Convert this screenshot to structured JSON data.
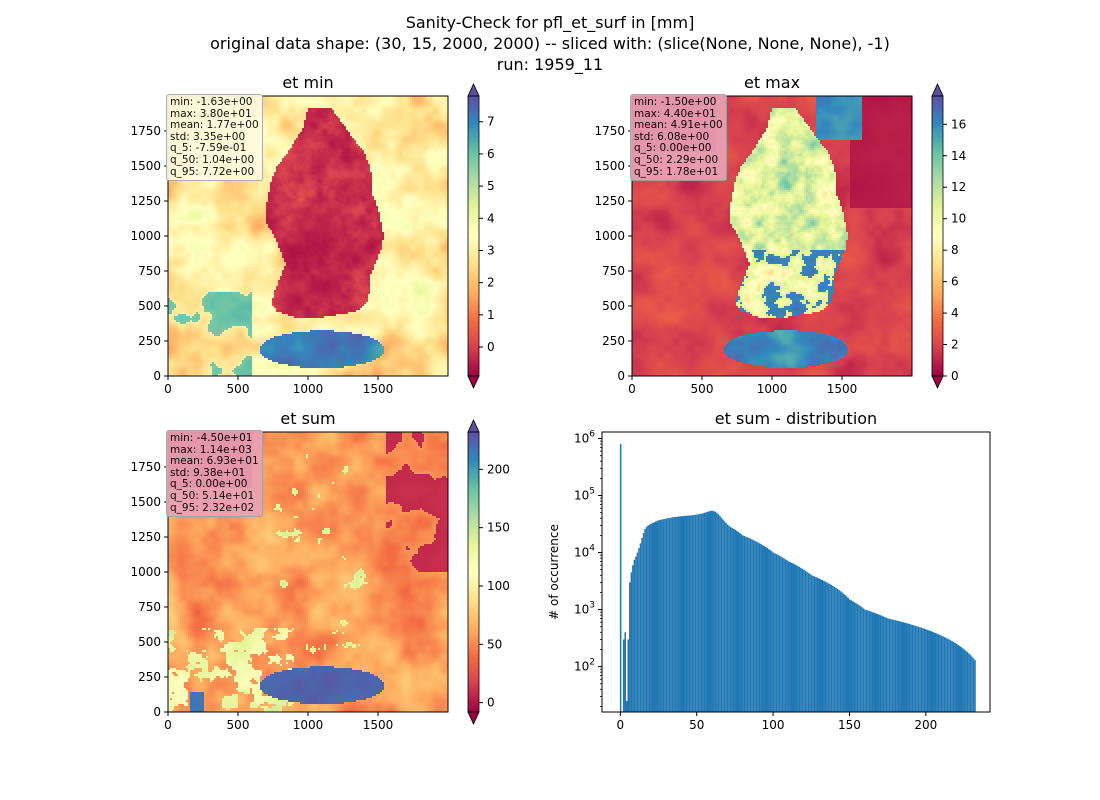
{
  "figure": {
    "suptitle_lines": [
      "Sanity-Check for pfl_et_surf in [mm]",
      "original data shape: (30, 15, 2000, 2000) -- sliced with: (slice(None, None, None), -1)",
      "run: 1959_11"
    ]
  },
  "chart_data": [
    {
      "type": "heatmap",
      "title": "et min",
      "colormap": "Spectral",
      "x_ticks": [
        "0",
        "500",
        "1000",
        "1500"
      ],
      "y_ticks": [
        "0",
        "250",
        "500",
        "750",
        "1000",
        "1250",
        "1500",
        "1750"
      ],
      "xlim": [
        0,
        2000
      ],
      "ylim": [
        0,
        2000
      ],
      "colorbar": {
        "min": -0.9,
        "max": 7.8,
        "ticks": [
          0,
          1,
          2,
          3,
          4,
          5,
          6,
          7
        ],
        "extend": "both"
      },
      "stats": [
        "min: -1.63e+00",
        "max: 3.80e+01",
        "mean: 1.77e+00",
        "std: 3.35e+00",
        "q_5: -7.59e-01",
        "q_50: 1.04e+00",
        "q_95: 7.72e+00"
      ],
      "stats_box_color": "#fffbe0"
    },
    {
      "type": "heatmap",
      "title": "et max",
      "colormap": "Spectral",
      "x_ticks": [
        "0",
        "500",
        "1000",
        "1500"
      ],
      "y_ticks": [
        "0",
        "250",
        "500",
        "750",
        "1000",
        "1250",
        "1500",
        "1750"
      ],
      "xlim": [
        0,
        2000
      ],
      "ylim": [
        0,
        2000
      ],
      "colorbar": {
        "min": 0,
        "max": 17.8,
        "ticks": [
          0,
          2,
          4,
          6,
          8,
          10,
          12,
          14,
          16
        ],
        "extend": "both"
      },
      "stats": [
        "min: -1.50e+00",
        "max: 4.40e+01",
        "mean: 4.91e+00",
        "std: 6.08e+00",
        "q_5: 0.00e+00",
        "q_50: 2.29e+00",
        "q_95: 1.78e+01"
      ],
      "stats_box_color": "#e9a2b5"
    },
    {
      "type": "heatmap",
      "title": "et sum",
      "colormap": "Spectral",
      "x_ticks": [
        "0",
        "500",
        "1000",
        "1500"
      ],
      "y_ticks": [
        "0",
        "250",
        "500",
        "750",
        "1000",
        "1250",
        "1500",
        "1750"
      ],
      "xlim": [
        0,
        2000
      ],
      "ylim": [
        0,
        2000
      ],
      "colorbar": {
        "min": -8,
        "max": 232,
        "ticks": [
          0,
          50,
          100,
          150,
          200
        ],
        "extend": "both"
      },
      "stats": [
        "min: -4.50e+01",
        "max: 1.14e+03",
        "mean: 6.93e+01",
        "std: 9.38e+01",
        "q_5: 0.00e+00",
        "q_50: 5.14e+01",
        "q_95: 2.32e+02"
      ],
      "stats_box_color": "#e9a2b5"
    },
    {
      "type": "bar",
      "title": "et sum - distribution",
      "xlabel": "",
      "ylabel": "# of occurrence",
      "yscale": "log",
      "xlim": [
        -12,
        242
      ],
      "ylim": [
        16,
        1300000
      ],
      "x_ticks": [
        0,
        50,
        100,
        150,
        200
      ],
      "y_ticks": [
        100,
        1000,
        10000,
        100000,
        1000000
      ],
      "y_tick_labels": [
        "10",
        "10",
        "10",
        "10",
        "10"
      ],
      "y_tick_exponents": [
        "2",
        "3",
        "4",
        "5",
        "6"
      ],
      "bar_color": "#1f77b4",
      "bins": {
        "start": -0.3,
        "width": 1.0
      },
      "values": [
        800000,
        0,
        300,
        400,
        25,
        300,
        3000,
        4500,
        6000,
        7500,
        8500,
        10000,
        12000,
        14500,
        18000,
        22000,
        26000,
        28000,
        30000,
        31000,
        32000,
        33000,
        34000,
        35000,
        36000,
        37000,
        37500,
        38000,
        38500,
        39000,
        39500,
        40000,
        40500,
        41000,
        41500,
        42000,
        42000,
        42500,
        43000,
        43000,
        43500,
        43500,
        44000,
        44000,
        44500,
        44500,
        45000,
        45000,
        45500,
        46000,
        46500,
        47000,
        47500,
        48000,
        49000,
        50000,
        51000,
        52000,
        53000,
        54000,
        54000,
        53000,
        52000,
        50000,
        47000,
        44000,
        41000,
        38000,
        35500,
        33000,
        31000,
        29500,
        28000,
        27000,
        26000,
        25000,
        24000,
        23000,
        22000,
        21000,
        20000,
        19500,
        19000,
        18500,
        18000,
        17500,
        17000,
        16500,
        16000,
        15500,
        15000,
        14500,
        14000,
        13500,
        13000,
        12500,
        12000,
        11500,
        11000,
        10500,
        10000,
        9700,
        9400,
        9100,
        8800,
        8500,
        8200,
        7900,
        7600,
        7300,
        7000,
        6800,
        6600,
        6400,
        6200,
        6000,
        5800,
        5600,
        5400,
        5200,
        5000,
        4800,
        4600,
        4400,
        4200,
        4000,
        3900,
        3800,
        3700,
        3600,
        3500,
        3400,
        3300,
        3200,
        3100,
        3000,
        2900,
        2800,
        2700,
        2600,
        2500,
        2400,
        2300,
        2200,
        2100,
        2000,
        1900,
        1800,
        1700,
        1600,
        1500,
        1450,
        1400,
        1350,
        1300,
        1250,
        1200,
        1150,
        1100,
        1050,
        1000,
        980,
        960,
        940,
        920,
        900,
        880,
        860,
        840,
        820,
        800,
        780,
        760,
        740,
        720,
        700,
        690,
        680,
        670,
        660,
        650,
        640,
        630,
        620,
        610,
        600,
        590,
        580,
        570,
        560,
        550,
        540,
        530,
        520,
        510,
        500,
        490,
        480,
        470,
        460,
        450,
        440,
        430,
        420,
        410,
        400,
        390,
        380,
        370,
        360,
        350,
        340,
        330,
        320,
        310,
        300,
        290,
        280,
        270,
        260,
        250,
        240,
        230,
        220,
        210,
        200,
        190,
        180,
        170,
        160,
        150,
        140,
        130
      ]
    }
  ]
}
